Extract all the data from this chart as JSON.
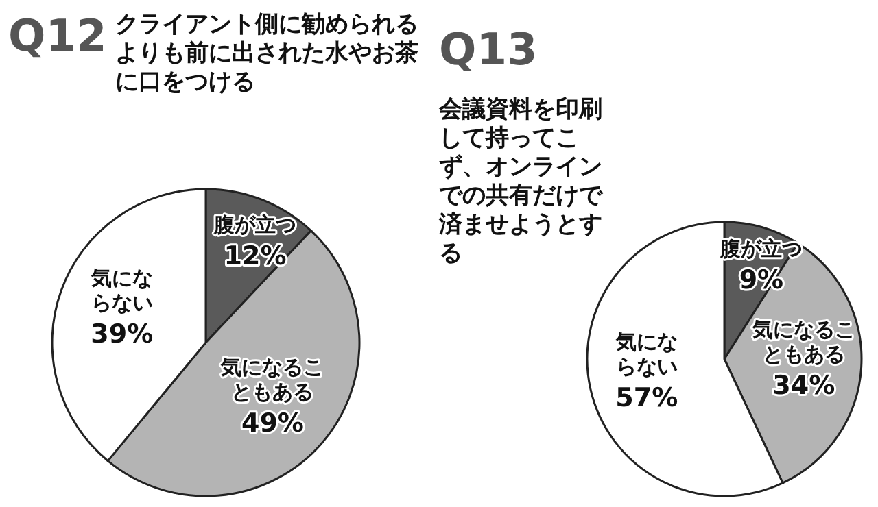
{
  "chart_data": [
    {
      "type": "pie",
      "title": "Q12",
      "subtitle": "クライアント側に勧められるよりも前に出された水やお茶に口をつける",
      "categories": [
        "腹が立つ",
        "気になることもある",
        "気にならない"
      ],
      "values": [
        12,
        49,
        39
      ],
      "colors": [
        "#5a5a5a",
        "#b4b4b4",
        "#ffffff"
      ],
      "value_labels": [
        "12%",
        "49%",
        "39%"
      ]
    },
    {
      "type": "pie",
      "title": "Q13",
      "subtitle": "会議資料を印刷して持ってこず、オンラインでの共有だけで済ませようとする",
      "categories": [
        "腹が立つ",
        "気になることもある",
        "気にならない"
      ],
      "values": [
        9,
        34,
        57
      ],
      "colors": [
        "#5a5a5a",
        "#b4b4b4",
        "#ffffff"
      ],
      "value_labels": [
        "9%",
        "34%",
        "57%"
      ]
    }
  ]
}
